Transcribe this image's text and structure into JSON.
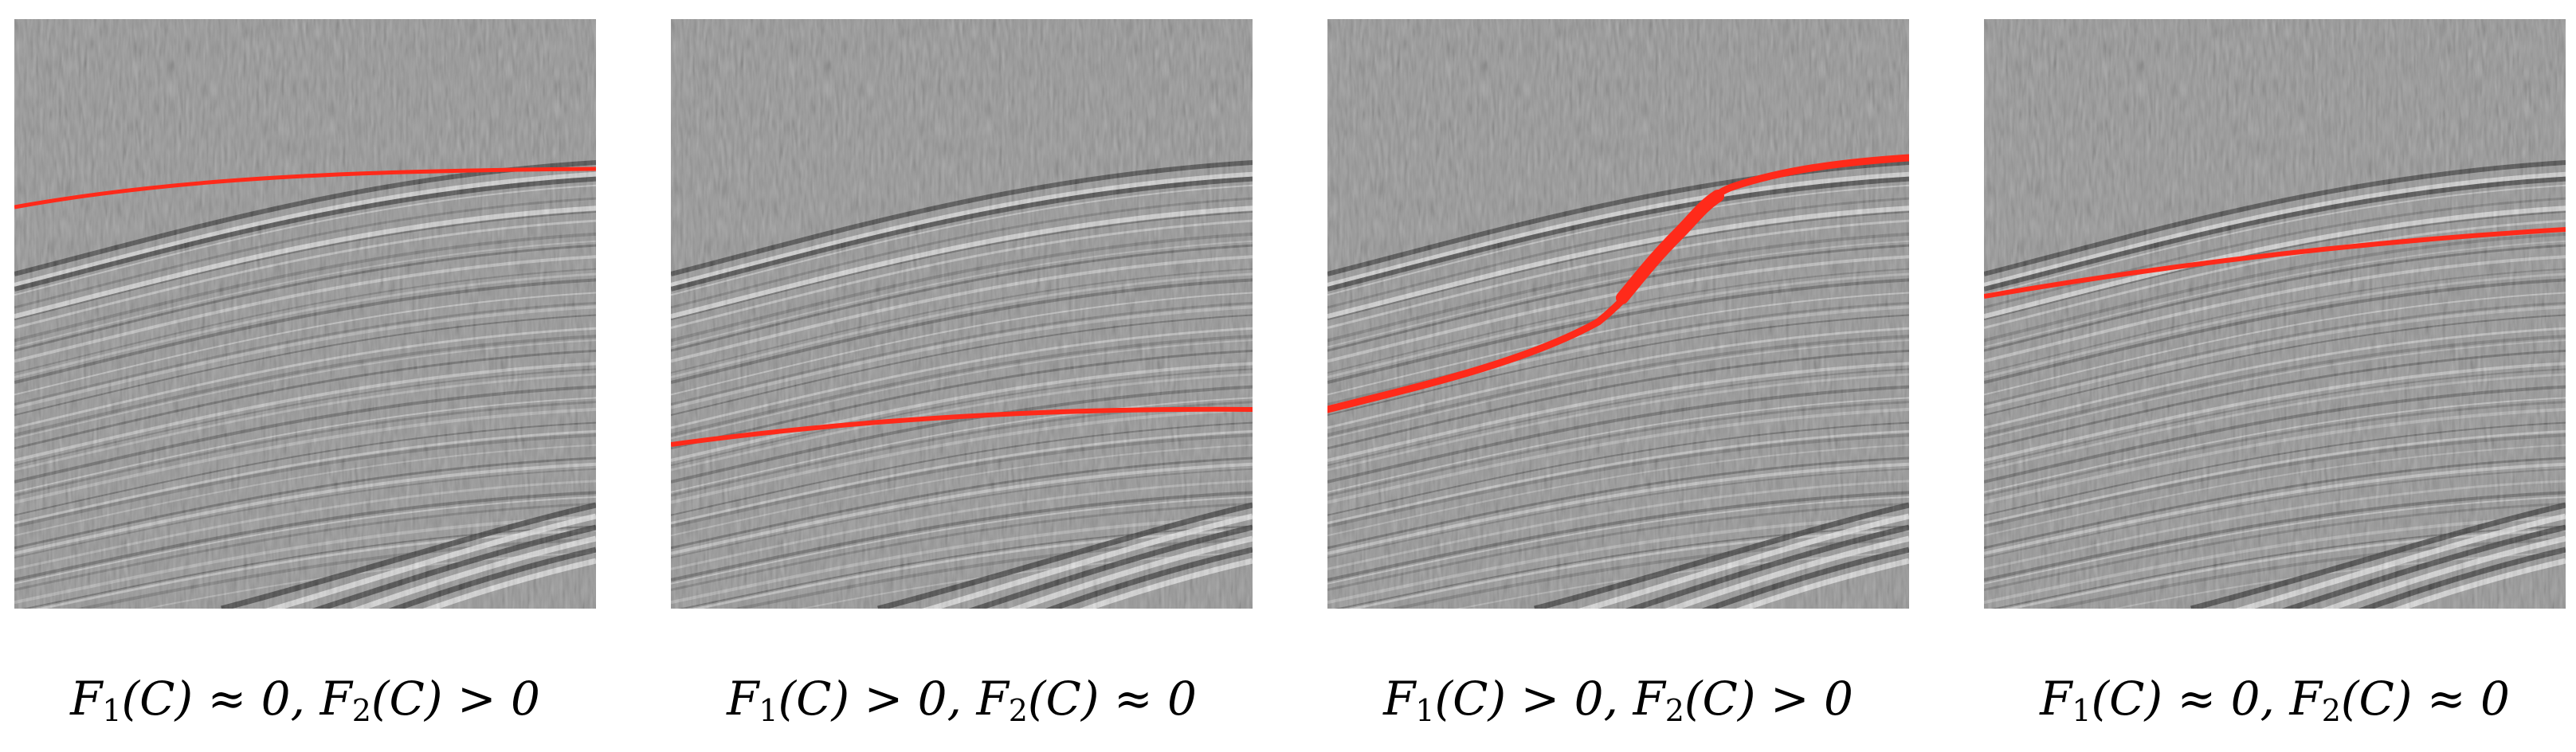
{
  "colors": {
    "background": "#8c8c8c",
    "curve": "#ff2a1a"
  },
  "panels": [
    {
      "caption": {
        "f1": "F",
        "i1": "1",
        "arg1": "(C) ≈ 0, ",
        "f2": "F",
        "i2": "2",
        "arg2": "(C) > 0"
      }
    },
    {
      "caption": {
        "f1": "F",
        "i1": "1",
        "arg1": "(C) > 0, ",
        "f2": "F",
        "i2": "2",
        "arg2": "(C) ≈ 0"
      }
    },
    {
      "caption": {
        "f1": "F",
        "i1": "1",
        "arg1": "(C) > 0, ",
        "f2": "F",
        "i2": "2",
        "arg2": "(C) > 0"
      }
    },
    {
      "caption": {
        "f1": "F",
        "i1": "1",
        "arg1": "(C) ≈ 0, ",
        "f2": "F",
        "i2": "2",
        "arg2": "(C) ≈ 0"
      }
    }
  ]
}
